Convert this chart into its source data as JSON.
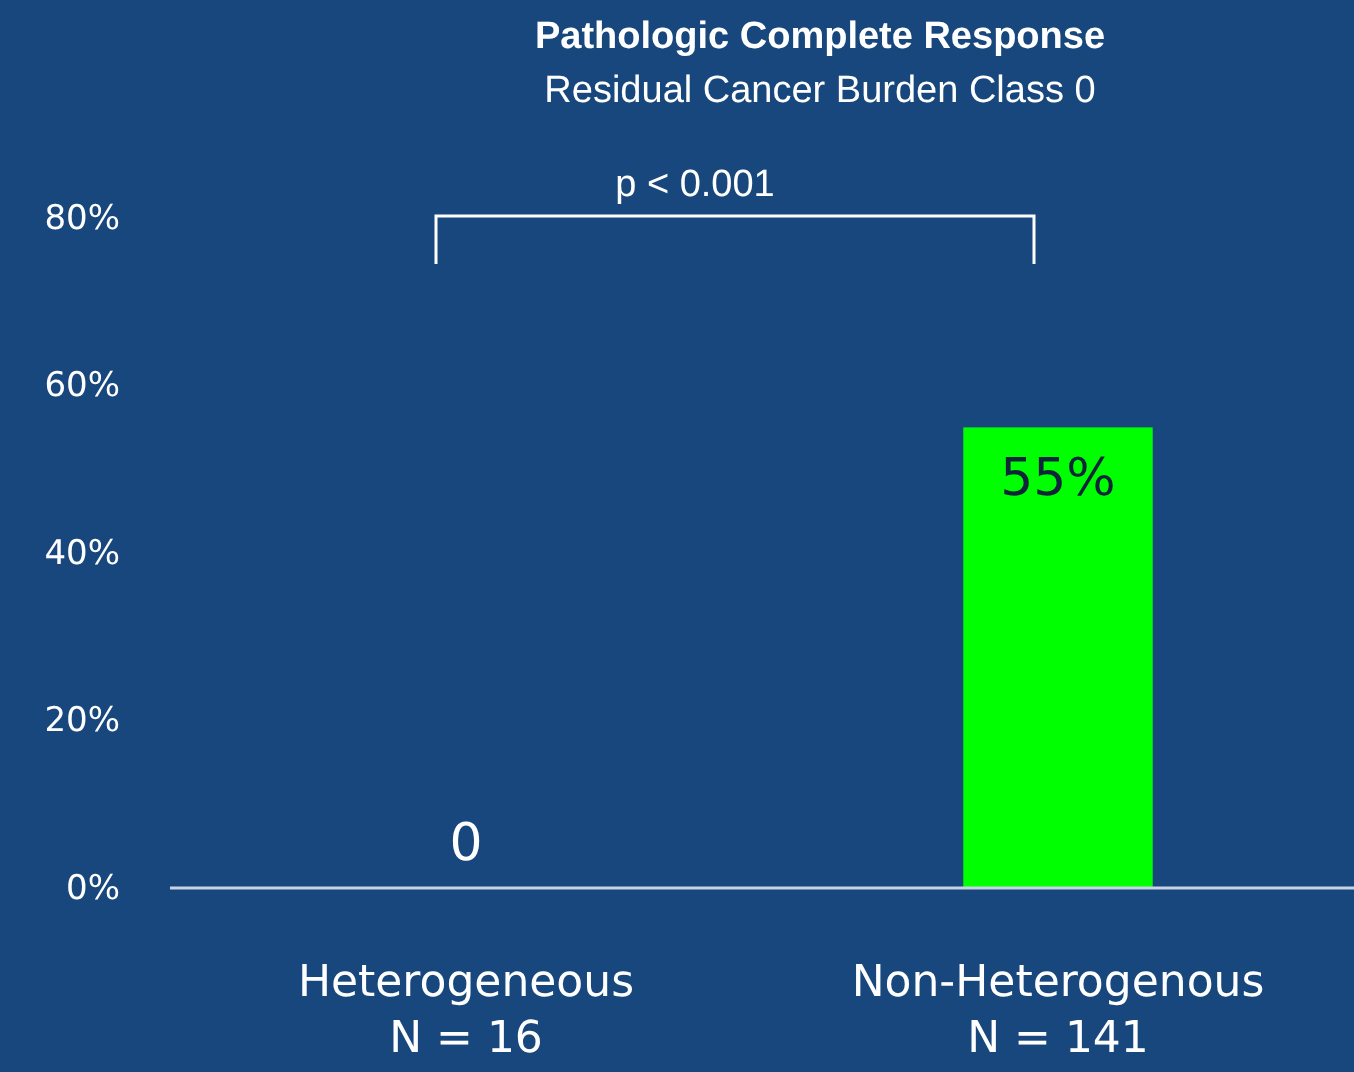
{
  "chart_data": {
    "type": "bar",
    "title": "Pathologic Complete Response",
    "subtitle": "Residual Cancer Burden Class 0",
    "categories": [
      "Heterogeneous\nN = 16",
      "Non-Heterogenous\nN = 141"
    ],
    "values": [
      0,
      55
    ],
    "color": "#00ff00",
    "value_labels": [
      "0",
      "55%"
    ],
    "ylim": [
      0,
      80
    ],
    "yticks": [
      {
        "value": 0,
        "label": "0%"
      },
      {
        "value": 20,
        "label": "20%"
      },
      {
        "value": 40,
        "label": "40%"
      },
      {
        "value": 60,
        "label": "60%"
      },
      {
        "value": 80,
        "label": "80%"
      }
    ],
    "grid": false,
    "annotations": [
      "p < 0.001"
    ]
  }
}
